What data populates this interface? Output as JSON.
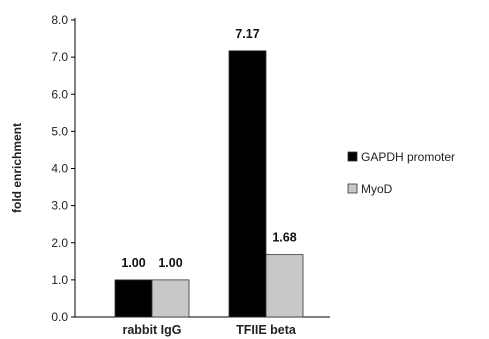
{
  "chart_data": {
    "type": "bar",
    "title": "",
    "xlabel": "",
    "ylabel": "fold enrichment",
    "ylim": [
      0,
      8
    ],
    "yticks": [
      "0.0",
      "1.0",
      "2.0",
      "3.0",
      "4.0",
      "5.0",
      "6.0",
      "7.0",
      "8.0"
    ],
    "categories": [
      "rabbit IgG",
      "TFIIE beta"
    ],
    "series": [
      {
        "name": "GAPDH promoter",
        "values": [
          1.0,
          7.17
        ],
        "labels": [
          "1.00",
          "7.17"
        ],
        "color": "#000000"
      },
      {
        "name": "MyoD",
        "values": [
          1.0,
          1.68
        ],
        "labels": [
          "1.00",
          "1.68"
        ],
        "color": "#c8c8c8"
      }
    ],
    "grid": false,
    "legend_position": "right"
  }
}
